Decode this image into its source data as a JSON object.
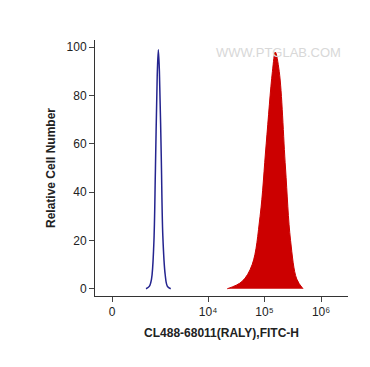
{
  "chart_data": {
    "type": "histogram_overlay",
    "x_label": "CL488-68011(RALY),FITC-H",
    "y_label": "Relative Cell Number",
    "annotations": [
      "WWW.PTGLAB.COM"
    ],
    "xlim": [
      -300,
      3000000
    ],
    "xticks": [
      0,
      {
        "value": 10000,
        "label": "10⁴"
      },
      {
        "value": 100000,
        "label": "10⁵"
      },
      {
        "value": 1000000,
        "label": "10⁶"
      }
    ],
    "ylim": [
      -3,
      103
    ],
    "yticks": [
      0,
      20,
      40,
      60,
      80,
      100
    ],
    "grid": false,
    "series": [
      {
        "type": "line",
        "color": "#24248f",
        "line_style": "solid",
        "x": [
          750,
          870,
          960,
          1060,
          1140,
          1230,
          1290,
          1350,
          1460,
          1560,
          1720,
          1890,
          2170
        ],
        "values": [
          0,
          1,
          4,
          18,
          50,
          88,
          99,
          90,
          55,
          22,
          6,
          1,
          0
        ]
      },
      {
        "type": "area",
        "color": "#cc0000",
        "line_style": "solid",
        "x": [
          21900,
          39900,
          60400,
          83400,
          107000,
          138000,
          155000,
          182000,
          235000,
          289000,
          372000,
          480000
        ],
        "values": [
          0,
          3,
          10,
          30,
          60,
          90,
          98,
          90,
          50,
          20,
          4,
          0
        ]
      }
    ]
  }
}
